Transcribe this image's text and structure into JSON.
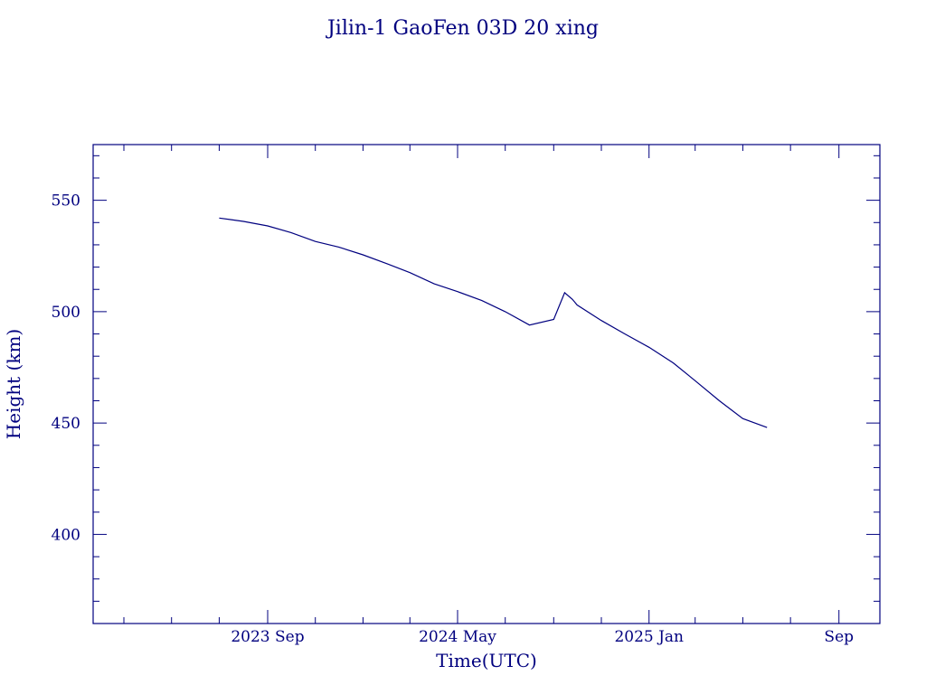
{
  "chart_data": {
    "type": "line",
    "title": "Jilin-1 GaoFen 03D 20 xing",
    "xlabel": "Time(UTC)",
    "ylabel": "Height (km)",
    "x_tick_labels": [
      "2023 Sep",
      "2024 May",
      "2025 Jan",
      "Sep"
    ],
    "y_tick_labels": [
      "400",
      "450",
      "500",
      "550"
    ],
    "ylim": [
      360,
      575
    ],
    "grid": false,
    "legend": "none",
    "color": "#00007f",
    "series": [
      {
        "x": [
          "2023-07-01",
          "2023-08-01",
          "2023-09-01",
          "2023-10-01",
          "2023-11-01",
          "2023-12-01",
          "2024-01-01",
          "2024-02-01",
          "2024-03-01",
          "2024-04-01",
          "2024-05-01",
          "2024-06-01",
          "2024-07-01",
          "2024-08-01",
          "2024-09-01",
          "2024-09-15",
          "2024-09-25",
          "2024-10-01",
          "2024-11-01",
          "2024-12-01",
          "2025-01-01",
          "2025-02-01",
          "2025-03-01",
          "2025-04-01",
          "2025-05-01",
          "2025-06-01"
        ],
        "y": [
          542,
          540.5,
          538.5,
          535.5,
          531.5,
          529,
          525.5,
          521.5,
          517.5,
          512.5,
          509,
          505,
          500,
          494,
          496.5,
          508.5,
          505.5,
          503,
          496,
          490,
          484,
          477,
          469,
          460,
          452,
          448
        ]
      }
    ]
  }
}
